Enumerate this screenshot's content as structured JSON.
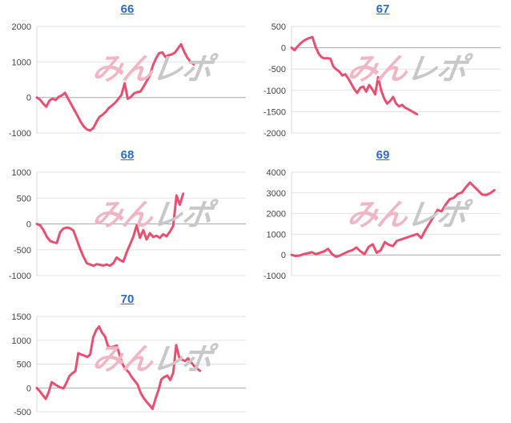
{
  "watermark": {
    "part1": "みん",
    "part2": "レポ"
  },
  "colors": {
    "background": "#ffffff",
    "line": "#e84f70",
    "grid": "#e3e3e3",
    "zero_line": "#aaaaaa",
    "axis_line": "#d9d9d9",
    "axis_label": "#444444",
    "title_link": "#2e6bc4",
    "watermark_pink": "#f0b6c4",
    "watermark_gray": "#c8c8c8"
  },
  "chart_data": [
    {
      "type": "line",
      "title": "66",
      "xlabel": "",
      "ylabel": "",
      "ylim": [
        -1000,
        2000
      ],
      "yticks": [
        2000,
        1000,
        0,
        -1000
      ],
      "grid": true,
      "legend": "none",
      "x_extent": 0.75,
      "values": [
        0,
        -60,
        -170,
        -260,
        -90,
        -30,
        -70,
        20,
        60,
        130,
        -40,
        -200,
        -360,
        -520,
        -690,
        -820,
        -900,
        -930,
        -860,
        -690,
        -545,
        -485,
        -400,
        -295,
        -225,
        -145,
        -40,
        75,
        400,
        -40,
        15,
        115,
        150,
        165,
        300,
        455,
        610,
        900,
        1100,
        1250,
        1270,
        1140,
        1190,
        1210,
        1260,
        1380,
        1500,
        1290,
        1120,
        1010,
        930
      ]
    },
    {
      "type": "line",
      "title": "67",
      "xlabel": "",
      "ylabel": "",
      "ylim": [
        -2000,
        500
      ],
      "yticks": [
        500,
        0,
        -500,
        -1000,
        -1500,
        -2000
      ],
      "grid": true,
      "legend": "none",
      "x_extent": 0.6,
      "values": [
        0,
        -60,
        30,
        100,
        160,
        200,
        230,
        250,
        30,
        -130,
        -220,
        -250,
        -245,
        -255,
        -440,
        -510,
        -560,
        -650,
        -625,
        -720,
        -845,
        -970,
        -1060,
        -940,
        -910,
        -1030,
        -875,
        -970,
        -1095,
        -690,
        -1000,
        -1190,
        -1310,
        -1250,
        -1155,
        -1310,
        -1375,
        -1340,
        -1405,
        -1440,
        -1480,
        -1520,
        -1560
      ]
    },
    {
      "type": "line",
      "title": "68",
      "xlabel": "",
      "ylabel": "",
      "ylim": [
        -1000,
        1000
      ],
      "yticks": [
        1000,
        500,
        0,
        -500,
        -1000
      ],
      "grid": true,
      "legend": "none",
      "x_extent": 0.7,
      "values": [
        0,
        -30,
        -120,
        -250,
        -330,
        -355,
        -370,
        -160,
        -90,
        -70,
        -85,
        -130,
        -300,
        -480,
        -630,
        -760,
        -785,
        -810,
        -780,
        -790,
        -805,
        -785,
        -810,
        -760,
        -650,
        -700,
        -730,
        -550,
        -400,
        -250,
        -30,
        -270,
        -120,
        -300,
        -180,
        -255,
        -230,
        -270,
        -200,
        -240,
        -150,
        -40,
        550,
        370,
        585
      ]
    },
    {
      "type": "line",
      "title": "69",
      "xlabel": "",
      "ylabel": "",
      "ylim": [
        -1000,
        4000
      ],
      "yticks": [
        4000,
        3000,
        2000,
        1000,
        0,
        -1000
      ],
      "grid": true,
      "legend": "none",
      "x_extent": 0.97,
      "values": [
        0,
        -50,
        -30,
        40,
        80,
        130,
        40,
        100,
        170,
        295,
        40,
        -90,
        -25,
        75,
        170,
        230,
        360,
        170,
        40,
        385,
        515,
        105,
        230,
        620,
        490,
        425,
        685,
        750,
        815,
        880,
        945,
        1010,
        815,
        1200,
        1525,
        1850,
        2175,
        2110,
        2435,
        2695,
        2760,
        2955,
        3020,
        3280,
        3500,
        3310,
        3115,
        2920,
        2900,
        2990,
        3130
      ]
    },
    {
      "type": "line",
      "title": "70",
      "xlabel": "",
      "ylabel": "",
      "ylim": [
        -500,
        1500
      ],
      "yticks": [
        1500,
        1000,
        500,
        0,
        -500
      ],
      "grid": true,
      "legend": "none",
      "x_extent": 0.78,
      "values": [
        0,
        -70,
        -150,
        -230,
        -90,
        120,
        80,
        40,
        10,
        -10,
        110,
        250,
        310,
        350,
        730,
        700,
        680,
        650,
        700,
        1060,
        1210,
        1290,
        1160,
        1080,
        880,
        850,
        870,
        890,
        670,
        490,
        390,
        330,
        230,
        150,
        70,
        -100,
        -210,
        -290,
        -360,
        -440,
        -230,
        -50,
        180,
        230,
        260,
        165,
        320,
        900,
        645,
        590,
        565,
        620,
        540,
        465,
        410,
        360
      ]
    }
  ]
}
